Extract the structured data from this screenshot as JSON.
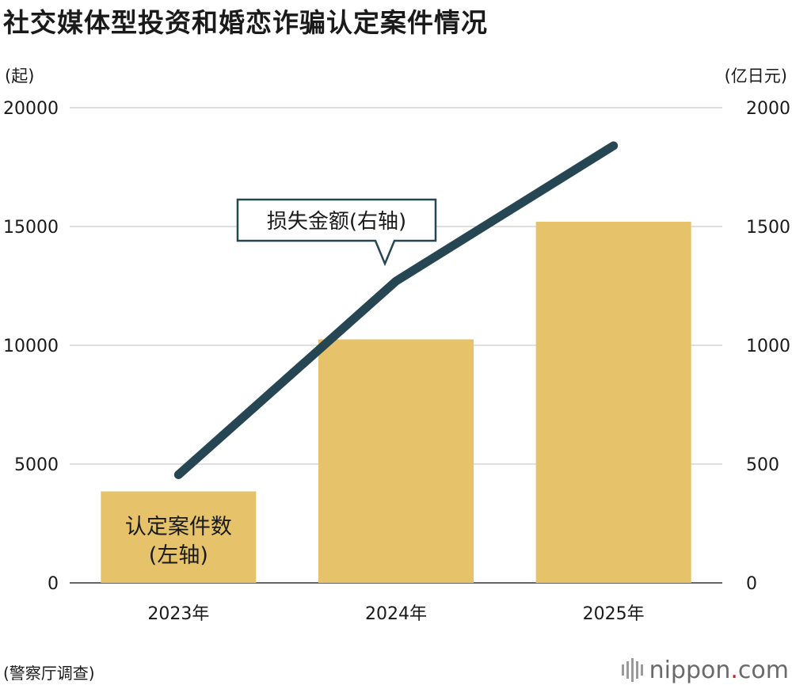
{
  "page": {
    "title": "社交媒体型投资和婚恋诈骗认定案件情况",
    "left_unit": "(起)",
    "right_unit": "(亿日元)",
    "source": "(警察厅调查)",
    "logo": {
      "name": "nippon",
      "dot": ".",
      "suffix": "com",
      "icon": "nippon-logo-bars-icon",
      "accent_color": "#c8202e"
    }
  },
  "chart_data": {
    "type": "bar",
    "categories": [
      "2023年",
      "2024年",
      "2025年"
    ],
    "series": [
      {
        "name": "认定案件数(左轴)",
        "type": "bar",
        "axis": "left",
        "values": [
          3850,
          10250,
          15200
        ],
        "color": "#e6c36a"
      },
      {
        "name": "损失金额(右轴)",
        "type": "line",
        "axis": "right",
        "values": [
          455,
          1270,
          1840
        ],
        "color": "#264653"
      }
    ],
    "left_axis": {
      "min": 0,
      "max": 20000,
      "ticks": [
        "0",
        "5000",
        "10000",
        "15000",
        "20000"
      ]
    },
    "right_axis": {
      "min": 0,
      "max": 2000,
      "ticks": [
        "0",
        "500",
        "1000",
        "1500",
        "2000"
      ]
    },
    "grid": true,
    "annotations": [
      {
        "series": 1,
        "text": "损失金额(右轴)",
        "target": "2024年"
      },
      {
        "series": 0,
        "text_lines": [
          "认定案件数",
          "(左轴)"
        ],
        "target": "2023年"
      }
    ]
  }
}
